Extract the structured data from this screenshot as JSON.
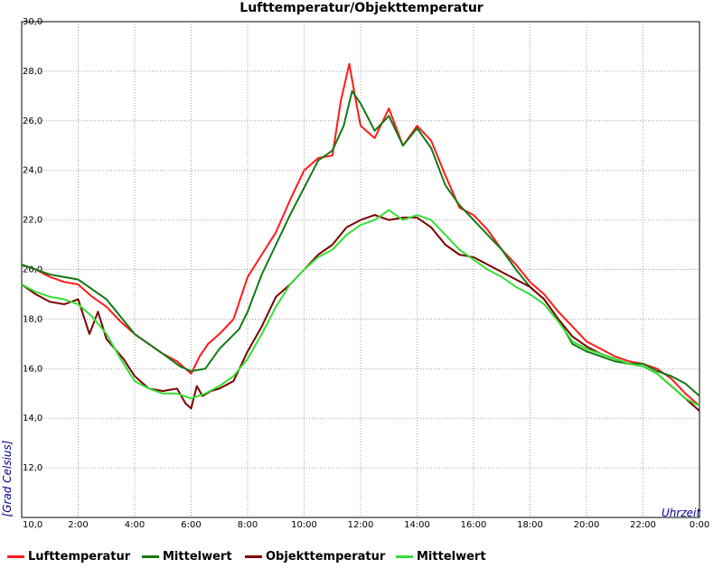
{
  "chart_data": {
    "type": "line",
    "title": "Lufttemperatur/Objekttemperatur",
    "xlabel": "Uhrzeit",
    "ylabel": "[Grad Celsius]",
    "xlim": [
      0,
      24
    ],
    "ylim": [
      10,
      30
    ],
    "x_ticks": [
      0,
      2,
      4,
      6,
      8,
      10,
      12,
      14,
      16,
      18,
      20,
      22,
      24
    ],
    "x_tick_labels": [
      "",
      "2:00",
      "4:00",
      "6:00",
      "8:00",
      "10:00",
      "12:00",
      "14:00",
      "16:00",
      "18:00",
      "20:00",
      "22:00",
      "0:00"
    ],
    "y_ticks": [
      10,
      12,
      14,
      16,
      18,
      20,
      22,
      24,
      26,
      28,
      30
    ],
    "y_tick_labels": [
      "10,0",
      "12,0",
      "14,0",
      "16,0",
      "18,0",
      "20,0",
      "22,0",
      "24,0",
      "26,0",
      "28,0",
      "30,0"
    ],
    "grid": true,
    "legend_position": "bottom",
    "series": [
      {
        "name": "Lufttemperatur",
        "color": "#ff1a1a",
        "x": [
          0,
          0.5,
          1,
          1.5,
          2,
          2.5,
          3,
          3.5,
          4,
          4.5,
          5,
          5.5,
          6,
          6.3,
          6.6,
          7,
          7.5,
          8,
          8.5,
          9,
          9.5,
          10,
          10.5,
          11,
          11.3,
          11.6,
          11.8,
          12,
          12.5,
          13,
          13.5,
          14,
          14.5,
          15,
          15.5,
          16,
          16.5,
          17,
          17.5,
          18,
          18.5,
          19,
          19.5,
          20,
          20.5,
          21,
          21.5,
          22,
          22.5,
          23,
          23.5,
          24
        ],
        "values": [
          20.2,
          20.0,
          19.7,
          19.5,
          19.4,
          18.9,
          18.5,
          17.9,
          17.4,
          17.0,
          16.6,
          16.3,
          15.8,
          16.5,
          17.0,
          17.4,
          18.0,
          19.7,
          20.6,
          21.5,
          22.8,
          24.0,
          24.5,
          24.6,
          26.8,
          28.3,
          27.0,
          25.8,
          25.3,
          26.5,
          25.0,
          25.8,
          25.2,
          23.8,
          22.5,
          22.2,
          21.6,
          20.8,
          20.2,
          19.5,
          19.0,
          18.3,
          17.7,
          17.1,
          16.8,
          16.5,
          16.3,
          16.2,
          16.0,
          15.6,
          15.0,
          14.5
        ]
      },
      {
        "name": "Mittelwert",
        "color": "#147814",
        "x": [
          0,
          1,
          2,
          3,
          4,
          5,
          5.6,
          6,
          6.5,
          7,
          7.7,
          8,
          8.5,
          9,
          9.5,
          10,
          10.5,
          11,
          11.4,
          11.7,
          12,
          12.5,
          13,
          13.5,
          14,
          14.5,
          15,
          15.5,
          16,
          16.5,
          17,
          17.5,
          18,
          18.5,
          19,
          19.5,
          20,
          20.5,
          21,
          21.5,
          22,
          22.5,
          23,
          23.5,
          24
        ],
        "values": [
          20.2,
          19.8,
          19.6,
          18.8,
          17.4,
          16.6,
          16.1,
          15.9,
          16.0,
          16.8,
          17.6,
          18.3,
          19.8,
          21.0,
          22.2,
          23.3,
          24.4,
          24.8,
          25.8,
          27.2,
          26.7,
          25.6,
          26.2,
          25.0,
          25.7,
          24.9,
          23.4,
          22.6,
          22.0,
          21.4,
          20.8,
          20.0,
          19.3,
          18.8,
          18.0,
          17.0,
          16.7,
          16.5,
          16.3,
          16.2,
          16.2,
          15.9,
          15.7,
          15.4,
          14.9
        ]
      },
      {
        "name": "Objekttemperatur",
        "color": "#7a0000",
        "x": [
          0,
          0.5,
          1,
          1.5,
          2,
          2.4,
          2.7,
          3,
          3.3,
          3.6,
          4,
          4.5,
          5,
          5.5,
          5.8,
          6,
          6.2,
          6.4,
          6.7,
          7,
          7.5,
          8,
          8.5,
          9,
          9.5,
          10,
          10.5,
          11,
          11.5,
          12,
          12.5,
          13,
          13.5,
          14,
          14.5,
          15,
          15.5,
          16,
          16.5,
          17,
          17.5,
          18,
          18.5,
          19,
          19.5,
          20,
          20.5,
          21,
          21.5,
          22,
          22.5,
          23,
          23.5,
          24
        ],
        "values": [
          19.4,
          19.0,
          18.7,
          18.6,
          18.8,
          17.4,
          18.3,
          17.2,
          16.8,
          16.4,
          15.7,
          15.2,
          15.1,
          15.2,
          14.6,
          14.4,
          15.3,
          14.9,
          15.1,
          15.2,
          15.5,
          16.7,
          17.7,
          18.9,
          19.4,
          20.0,
          20.6,
          21.0,
          21.7,
          22.0,
          22.2,
          22.0,
          22.1,
          22.1,
          21.7,
          21.0,
          20.6,
          20.5,
          20.2,
          19.9,
          19.6,
          19.3,
          18.8,
          18.0,
          17.3,
          16.9,
          16.6,
          16.4,
          16.2,
          16.1,
          15.8,
          15.3,
          14.8,
          14.3
        ]
      },
      {
        "name": "Mittelwert",
        "color": "#33e033",
        "x": [
          0,
          0.5,
          1,
          1.5,
          2,
          2.5,
          3,
          3.5,
          4,
          4.5,
          5,
          5.5,
          6,
          6.5,
          7,
          7.5,
          8,
          8.5,
          9,
          9.5,
          10,
          10.5,
          11,
          11.5,
          12,
          12.5,
          13,
          13.5,
          14,
          14.5,
          15,
          15.5,
          16,
          16.5,
          17,
          17.5,
          18,
          18.5,
          19,
          19.5,
          20,
          20.5,
          21,
          21.5,
          22,
          22.5,
          23,
          23.5,
          24
        ],
        "values": [
          19.4,
          19.1,
          18.9,
          18.8,
          18.6,
          18.1,
          17.4,
          16.4,
          15.5,
          15.2,
          15.0,
          15.0,
          14.8,
          15.0,
          15.3,
          15.7,
          16.4,
          17.4,
          18.5,
          19.4,
          20.0,
          20.5,
          20.8,
          21.4,
          21.8,
          22.0,
          22.4,
          22.0,
          22.2,
          22.0,
          21.4,
          20.8,
          20.4,
          20.0,
          19.7,
          19.3,
          19.0,
          18.6,
          17.9,
          17.1,
          16.8,
          16.6,
          16.4,
          16.2,
          16.1,
          15.8,
          15.3,
          14.8,
          14.5
        ]
      }
    ]
  }
}
